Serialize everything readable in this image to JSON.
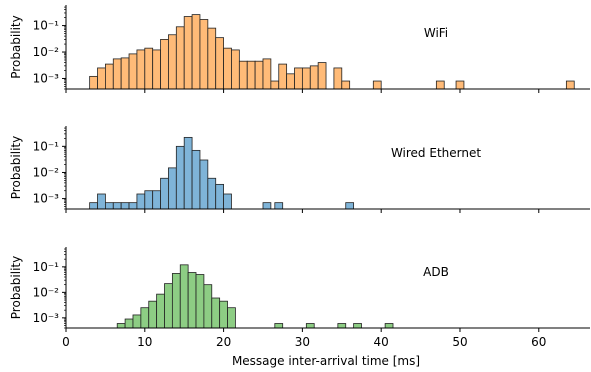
{
  "chart_data": [
    {
      "type": "bar",
      "annotation": "WiFi",
      "ylabel": "Probability",
      "yscale": "log",
      "ylim": [
        0.0004,
        0.6
      ],
      "yticks": [
        {
          "value": 0.1,
          "label": "10⁻¹"
        },
        {
          "value": 0.01,
          "label": "10⁻²"
        },
        {
          "value": 0.001,
          "label": "10⁻³"
        }
      ],
      "xlim": [
        0,
        66.5
      ],
      "bin_width": 1,
      "color": "#ffbb78",
      "bins": [
        {
          "x": 3,
          "y": 0.0012
        },
        {
          "x": 4,
          "y": 0.0025
        },
        {
          "x": 5,
          "y": 0.0035
        },
        {
          "x": 6,
          "y": 0.0055
        },
        {
          "x": 7,
          "y": 0.006
        },
        {
          "x": 8,
          "y": 0.0085
        },
        {
          "x": 9,
          "y": 0.012
        },
        {
          "x": 10,
          "y": 0.014
        },
        {
          "x": 11,
          "y": 0.012
        },
        {
          "x": 12,
          "y": 0.03
        },
        {
          "x": 13,
          "y": 0.045
        },
        {
          "x": 14,
          "y": 0.09
        },
        {
          "x": 15,
          "y": 0.22
        },
        {
          "x": 16,
          "y": 0.26
        },
        {
          "x": 17,
          "y": 0.17
        },
        {
          "x": 18,
          "y": 0.08
        },
        {
          "x": 19,
          "y": 0.035
        },
        {
          "x": 20,
          "y": 0.014
        },
        {
          "x": 21,
          "y": 0.012
        },
        {
          "x": 22,
          "y": 0.0045
        },
        {
          "x": 23,
          "y": 0.0045
        },
        {
          "x": 24,
          "y": 0.0045
        },
        {
          "x": 25,
          "y": 0.0055
        },
        {
          "x": 26,
          "y": 0.0008
        },
        {
          "x": 27,
          "y": 0.0035
        },
        {
          "x": 28,
          "y": 0.0015
        },
        {
          "x": 29,
          "y": 0.0025
        },
        {
          "x": 30,
          "y": 0.0025
        },
        {
          "x": 31,
          "y": 0.003
        },
        {
          "x": 32,
          "y": 0.004
        },
        {
          "x": 34,
          "y": 0.0025
        },
        {
          "x": 35,
          "y": 0.0008
        },
        {
          "x": 39,
          "y": 0.0008
        },
        {
          "x": 47,
          "y": 0.0008
        },
        {
          "x": 49.5,
          "y": 0.0008
        },
        {
          "x": 63.5,
          "y": 0.0008
        }
      ]
    },
    {
      "type": "bar",
      "annotation": "Wired Ethernet",
      "ylabel": "Probability",
      "yscale": "log",
      "ylim": [
        0.0004,
        0.6
      ],
      "yticks": [
        {
          "value": 0.1,
          "label": "10⁻¹"
        },
        {
          "value": 0.01,
          "label": "10⁻²"
        },
        {
          "value": 0.001,
          "label": "10⁻³"
        }
      ],
      "xlim": [
        0,
        66.5
      ],
      "bin_width": 1,
      "color": "#7fb4d8",
      "bins": [
        {
          "x": 3,
          "y": 0.0007
        },
        {
          "x": 4,
          "y": 0.0015
        },
        {
          "x": 5,
          "y": 0.0007
        },
        {
          "x": 6,
          "y": 0.0007
        },
        {
          "x": 7,
          "y": 0.0007
        },
        {
          "x": 8,
          "y": 0.0007
        },
        {
          "x": 9,
          "y": 0.0015
        },
        {
          "x": 10,
          "y": 0.002
        },
        {
          "x": 11,
          "y": 0.002
        },
        {
          "x": 12,
          "y": 0.006
        },
        {
          "x": 13,
          "y": 0.015
        },
        {
          "x": 14,
          "y": 0.1
        },
        {
          "x": 15,
          "y": 0.22
        },
        {
          "x": 16,
          "y": 0.07
        },
        {
          "x": 17,
          "y": 0.03
        },
        {
          "x": 18,
          "y": 0.006
        },
        {
          "x": 19,
          "y": 0.0035
        },
        {
          "x": 20,
          "y": 0.0015
        },
        {
          "x": 25,
          "y": 0.0007
        },
        {
          "x": 26.5,
          "y": 0.0007
        },
        {
          "x": 35.5,
          "y": 0.0007
        }
      ]
    },
    {
      "type": "bar",
      "annotation": "ADB",
      "ylabel": "Probability",
      "yscale": "log",
      "ylim": [
        0.0004,
        0.6
      ],
      "yticks": [
        {
          "value": 0.1,
          "label": "10⁻¹"
        },
        {
          "value": 0.01,
          "label": "10⁻²"
        },
        {
          "value": 0.001,
          "label": "10⁻³"
        }
      ],
      "xlim": [
        0,
        66.5
      ],
      "xlabel": "Message inter-arrival time [ms]",
      "xticks": [
        {
          "value": 0,
          "label": "0"
        },
        {
          "value": 10,
          "label": "10"
        },
        {
          "value": 20,
          "label": "20"
        },
        {
          "value": 30,
          "label": "30"
        },
        {
          "value": 40,
          "label": "40"
        },
        {
          "value": 50,
          "label": "50"
        },
        {
          "value": 60,
          "label": "60"
        }
      ],
      "bin_width": 1,
      "color": "#8dcd84",
      "bins": [
        {
          "x": 6.5,
          "y": 0.0006
        },
        {
          "x": 7.5,
          "y": 0.0009
        },
        {
          "x": 8.5,
          "y": 0.0013
        },
        {
          "x": 9.5,
          "y": 0.0025
        },
        {
          "x": 10.5,
          "y": 0.0045
        },
        {
          "x": 11.5,
          "y": 0.0085
        },
        {
          "x": 12.5,
          "y": 0.022
        },
        {
          "x": 13.5,
          "y": 0.055
        },
        {
          "x": 14.5,
          "y": 0.12
        },
        {
          "x": 15.5,
          "y": 0.06
        },
        {
          "x": 16.5,
          "y": 0.05
        },
        {
          "x": 17.5,
          "y": 0.02
        },
        {
          "x": 18.5,
          "y": 0.006
        },
        {
          "x": 19.5,
          "y": 0.0045
        },
        {
          "x": 20.5,
          "y": 0.0025
        },
        {
          "x": 26.5,
          "y": 0.0006
        },
        {
          "x": 30.5,
          "y": 0.0006
        },
        {
          "x": 34.5,
          "y": 0.0006
        },
        {
          "x": 36.5,
          "y": 0.0006
        },
        {
          "x": 40.5,
          "y": 0.0006
        }
      ]
    }
  ]
}
